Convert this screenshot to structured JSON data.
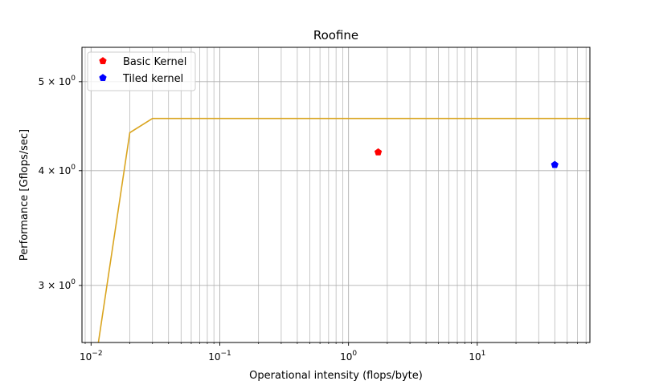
{
  "chart_data": {
    "type": "line",
    "title": "Roofine",
    "xlabel": "Operational intensity (flops/byte)",
    "ylabel": "Performance [Gflops/sec]",
    "xscale": "log",
    "yscale": "log",
    "xlim": [
      0.0085,
      75
    ],
    "ylim": [
      2.6,
      5.45
    ],
    "grid": true,
    "grid_which": "both",
    "legend_position": "top-left",
    "x_ticks": [
      {
        "value": 0.01,
        "base": "10",
        "exp": "−2"
      },
      {
        "value": 0.1,
        "base": "10",
        "exp": "−1"
      },
      {
        "value": 1,
        "base": "10",
        "exp": "0"
      },
      {
        "value": 10,
        "base": "10",
        "exp": "1"
      }
    ],
    "y_ticks": [
      {
        "value": 3,
        "mant": "3 × 10",
        "exp": "0"
      },
      {
        "value": 4,
        "mant": "4 × 10",
        "exp": "0"
      },
      {
        "value": 5,
        "mant": "5 × 10",
        "exp": "0"
      }
    ],
    "series": [
      {
        "kind": "line",
        "color": "#DAA520",
        "x": [
          0.01,
          0.02,
          0.03,
          75
        ],
        "y": [
          2.3,
          4.4,
          4.56,
          4.56
        ]
      },
      {
        "kind": "points",
        "name": "Basic Kernel",
        "color": "#ff0000",
        "marker": "pentagon",
        "x": [
          1.7
        ],
        "y": [
          4.19
        ]
      },
      {
        "kind": "points",
        "name": "Tiled kernel",
        "color": "#0000ff",
        "marker": "pentagon",
        "x": [
          40
        ],
        "y": [
          4.06
        ]
      }
    ]
  }
}
